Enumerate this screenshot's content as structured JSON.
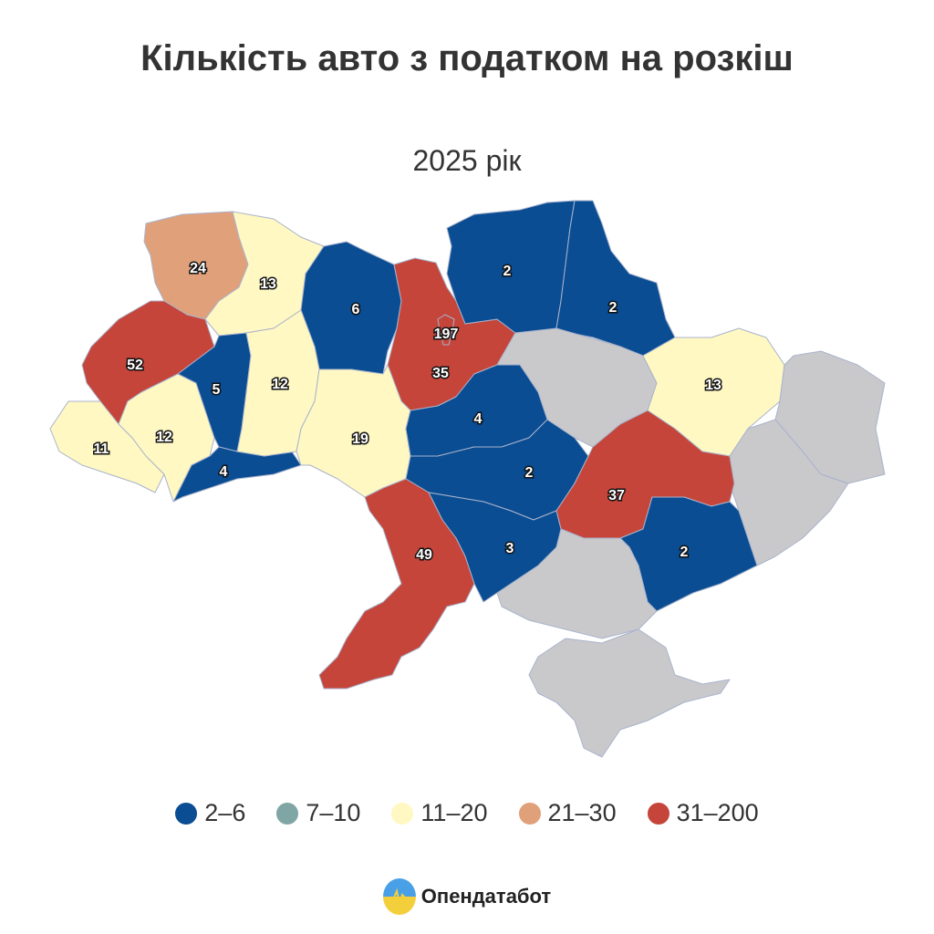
{
  "title": "Кількість авто з податком на розкіш",
  "subtitle": "2025 рік",
  "legend": [
    {
      "label": "2–6",
      "color": "#0a4d93",
      "min": 2,
      "max": 6
    },
    {
      "label": "7–10",
      "color": "#7fa6a5",
      "min": 7,
      "max": 10
    },
    {
      "label": "11–20",
      "color": "#fff8c2",
      "min": 11,
      "max": 20
    },
    {
      "label": "21–30",
      "color": "#e0a07a",
      "min": 21,
      "max": 30
    },
    {
      "label": "31–200",
      "color": "#c5453a",
      "min": 31,
      "max": 200
    }
  ],
  "no_data_color": "#c9c9cc",
  "regions": [
    {
      "value": 24
    },
    {
      "value": 13
    },
    {
      "value": 6
    },
    {
      "value": 35
    },
    {
      "value": 197
    },
    {
      "value": 2
    },
    {
      "value": 2
    },
    {
      "value": null
    },
    {
      "value": 13
    },
    {
      "value": null
    },
    {
      "value": null
    },
    {
      "value": 52
    },
    {
      "value": 11
    },
    {
      "value": 12
    },
    {
      "value": 5
    },
    {
      "value": 4
    },
    {
      "value": 12
    },
    {
      "value": 19
    },
    {
      "value": 4
    },
    {
      "value": 2
    },
    {
      "value": 37
    },
    {
      "value": 2
    },
    {
      "value": null
    },
    {
      "value": null
    },
    {
      "value": 3
    },
    {
      "value": 49
    }
  ],
  "brand": "Опендатабот"
}
